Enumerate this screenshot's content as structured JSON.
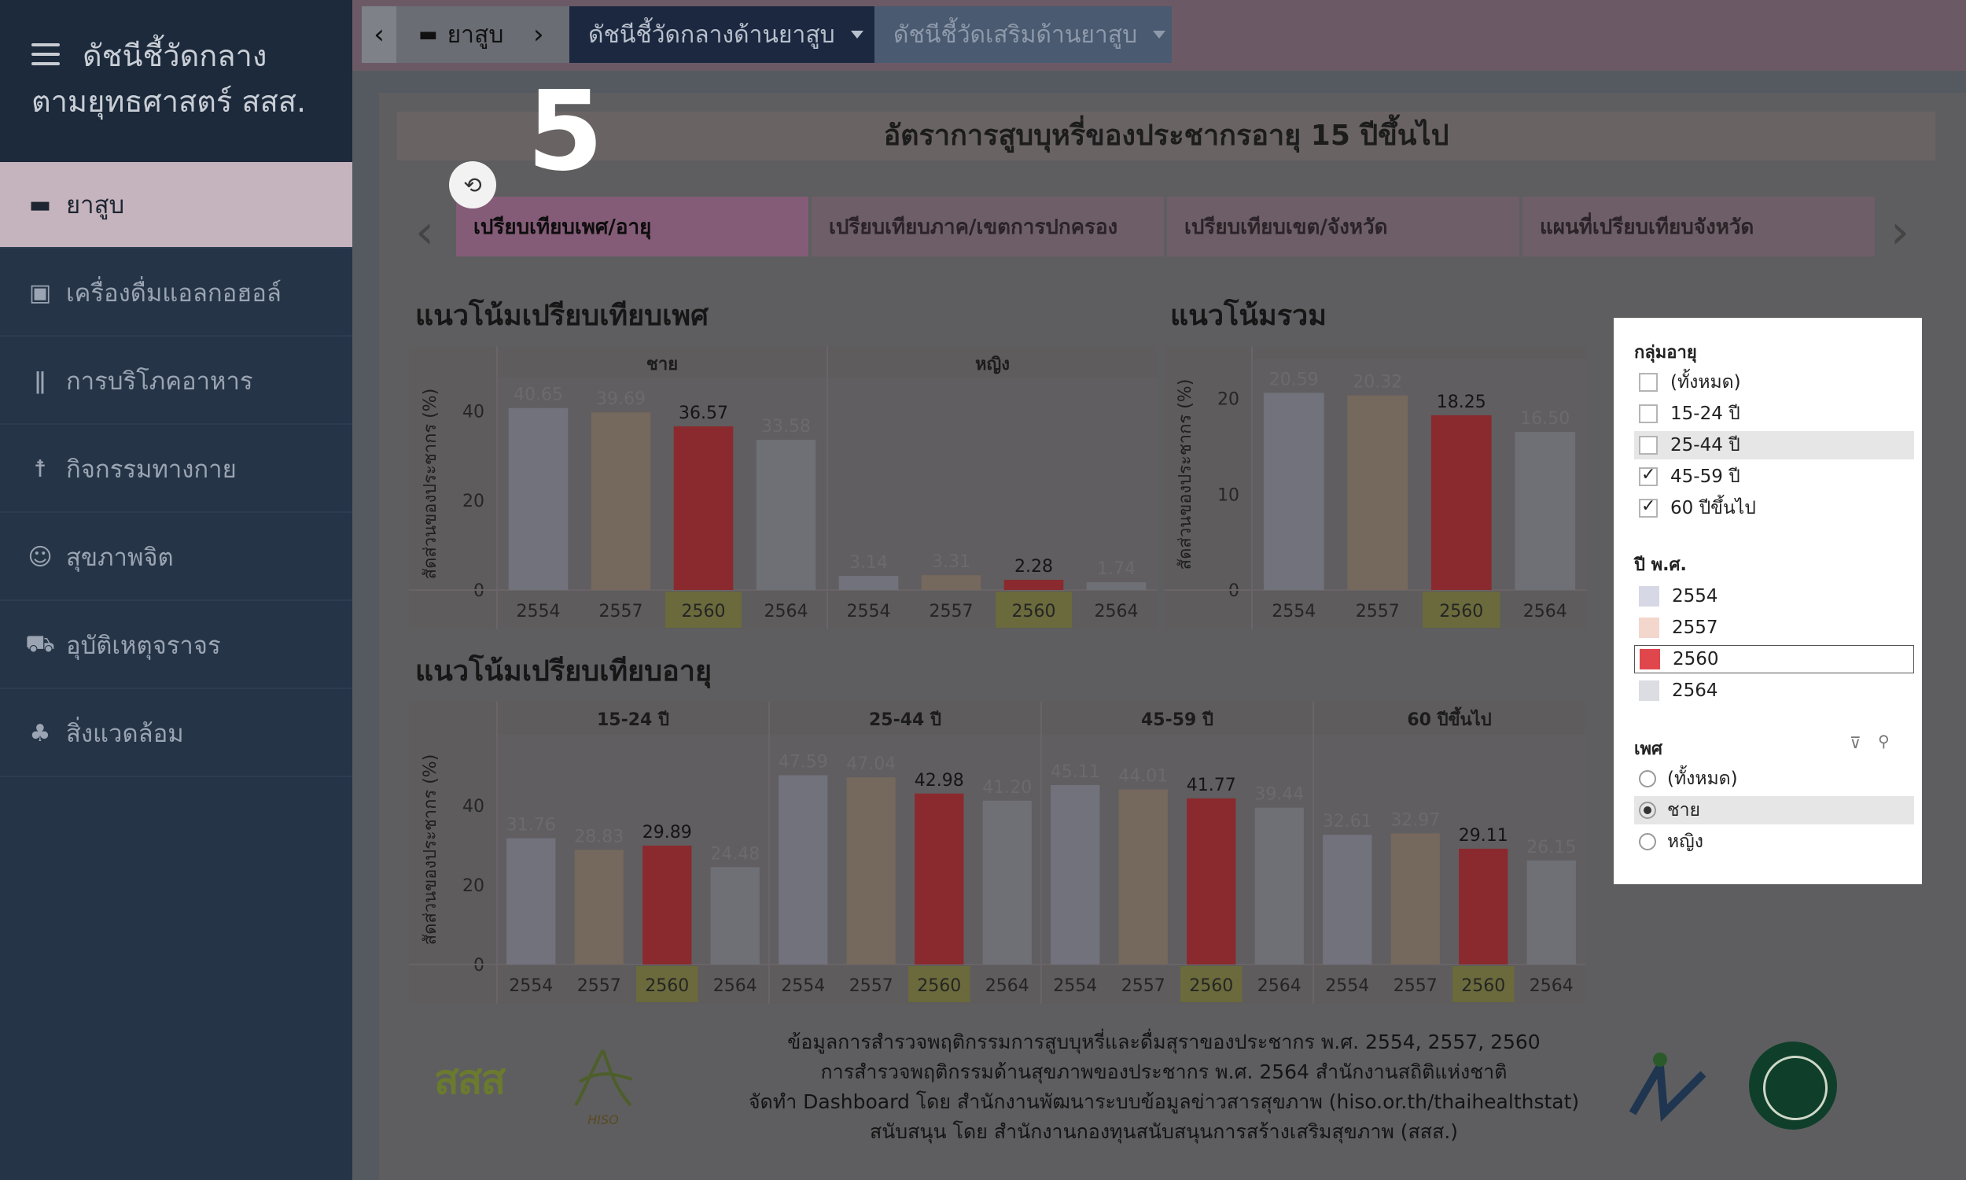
{
  "sidebar": {
    "title_line1": "ดัชนีชี้วัดกลาง",
    "title_line2": "ตามยุทธศาสตร์ สสส.",
    "items": [
      {
        "label": "ยาสูบ",
        "icon": "cigarette-icon"
      },
      {
        "label": "เครื่องดื่มแอลกอฮอล์",
        "icon": "beer-icon"
      },
      {
        "label": "การบริโภคอาหาร",
        "icon": "fork-knife-icon"
      },
      {
        "label": "กิจกรรมทางกาย",
        "icon": "walking-icon"
      },
      {
        "label": "สุขภาพจิต",
        "icon": "smile-icon"
      },
      {
        "label": "อุบัติเหตุจราจร",
        "icon": "car-crash-icon"
      },
      {
        "label": "สิ่งแวดล้อม",
        "icon": "tree-icon"
      }
    ]
  },
  "breadcrumb": {
    "home": "ยาสูบ",
    "tab_core": "ดัชนีชี้วัดกลางด้านยาสูบ",
    "tab_extra": "ดัชนีชี้วัดเสริมด้านยาสูบ"
  },
  "overlay": {
    "step": "5"
  },
  "dashboard": {
    "title": "อัตราการสูบบุหรี่ของประชากรอายุ 15 ปีขึ้นไป",
    "tabs": [
      "เปรียบเทียบเพศ/อายุ",
      "เปรียบเทียบภาค/เขตการปกครอง",
      "เปรียบเทียบเขต/จังหวัด",
      "แผนที่เปรียบเทียบจังหวัด"
    ],
    "section_sex": "แนวโน้มเปรียบเทียบเพศ",
    "section_total": "แนวโน้มรวม",
    "section_age": "แนวโน้มเปรียบเทียบอายุ"
  },
  "chart_data": [
    {
      "type": "bar",
      "ylabel": "สัดส่วนของประชากร (%)",
      "ylim": [
        0,
        45
      ],
      "yticks": [
        0,
        20,
        40
      ],
      "categories": [
        "2554",
        "2557",
        "2560",
        "2564"
      ],
      "highlight": "2560",
      "panels": [
        {
          "name": "ชาย",
          "values": [
            40.65,
            39.69,
            36.57,
            33.58
          ]
        },
        {
          "name": "หญิง",
          "values": [
            3.14,
            3.31,
            2.28,
            1.74
          ]
        }
      ]
    },
    {
      "type": "bar",
      "ylabel": "สัดส่วนของประชากร (%)",
      "ylim": [
        0,
        23
      ],
      "yticks": [
        0,
        10,
        20
      ],
      "categories": [
        "2554",
        "2557",
        "2560",
        "2564"
      ],
      "highlight": "2560",
      "panels": [
        {
          "name": "",
          "values": [
            20.59,
            20.32,
            18.25,
            16.5
          ]
        }
      ]
    },
    {
      "type": "bar",
      "ylabel": "สัดส่วนของประชากร (%)",
      "ylim": [
        0,
        55
      ],
      "yticks": [
        0,
        20,
        40
      ],
      "categories": [
        "2554",
        "2557",
        "2560",
        "2564"
      ],
      "highlight": "2560",
      "panels": [
        {
          "name": "15-24 ปี",
          "values": [
            31.76,
            28.83,
            29.89,
            24.48
          ]
        },
        {
          "name": "25-44 ปี",
          "values": [
            47.59,
            47.04,
            42.98,
            41.2
          ]
        },
        {
          "name": "45-59 ปี",
          "values": [
            45.11,
            44.01,
            41.77,
            39.44
          ]
        },
        {
          "name": "60 ปีขึ้นไป",
          "values": [
            32.61,
            32.97,
            29.11,
            26.15
          ]
        }
      ]
    }
  ],
  "colors": {
    "2554": "#71727c",
    "2557": "#75685d",
    "2560": "#8a2a2e",
    "2564": "#6e7075",
    "highlight_cell": "#6a6a3c"
  },
  "filters": {
    "age_title": "กลุ่มอายุ",
    "age_options": [
      {
        "label": "(ทั้งหมด)",
        "checked": false
      },
      {
        "label": "15-24 ปี",
        "checked": false
      },
      {
        "label": "25-44 ปี",
        "checked": false
      },
      {
        "label": "45-59 ปี",
        "checked": true
      },
      {
        "label": "60 ปีขึ้นไป",
        "checked": true
      }
    ],
    "year_title": "ปี พ.ศ.",
    "year_options": [
      {
        "label": "2554",
        "color": "#d7d8e6"
      },
      {
        "label": "2557",
        "color": "#f3d6cc"
      },
      {
        "label": "2560",
        "color": "#e0474c"
      },
      {
        "label": "2564",
        "color": "#dcdde2"
      }
    ],
    "sex_title": "เพศ",
    "sex_options": [
      {
        "label": "(ทั้งหมด)",
        "selected": false
      },
      {
        "label": "ชาย",
        "selected": true
      },
      {
        "label": "หญิง",
        "selected": false
      }
    ]
  },
  "footer": {
    "line1": "ข้อมูลการสำรวจพฤติกรรมการสูบบุหรี่และดื่มสุราของประชากร พ.ศ. 2554, 2557, 2560",
    "line2": "การสำรวจพฤติกรรมด้านสุขภาพของประชากร พ.ศ. 2564 สำนักงานสถิติแห่งชาติ",
    "line3": "จัดทำ Dashboard โดย สำนักงานพัฒนาระบบข้อมูลข่าวสารสุขภาพ (hiso.or.th/thaihealthstat)",
    "line4": "สนับสนุน โดย สำนักงานกองทุนสนับสนุนการสร้างเสริมสุขภาพ (สสส.)",
    "logo_thaihealth": "สสส",
    "logo_hiso": "HISO"
  }
}
